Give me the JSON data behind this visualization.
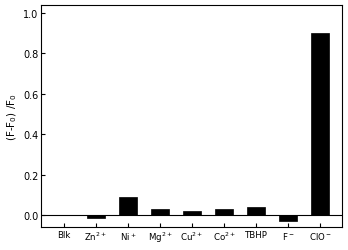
{
  "categories": [
    "Blk",
    "Zn$^{2+}$",
    "Ni$^+$",
    "Mg$^{2+}$",
    "Cu$^{2+}$",
    "Co$^{2+}$",
    "TBHP",
    "F$^-$",
    "ClO$^-$"
  ],
  "values": [
    0.0,
    -0.015,
    0.09,
    0.03,
    0.02,
    0.03,
    0.04,
    -0.03,
    0.9
  ],
  "bar_color": "#000000",
  "ylabel": "(F-F$_0$) /F$_0$",
  "ylim": [
    -0.06,
    1.04
  ],
  "yticks": [
    0.0,
    0.2,
    0.4,
    0.6,
    0.8,
    1.0
  ],
  "ytick_labels": [
    "0.0",
    "0.2",
    "0.4",
    "0.6",
    "0.8",
    "1.0"
  ],
  "background_color": "#ffffff",
  "bar_width": 0.55
}
